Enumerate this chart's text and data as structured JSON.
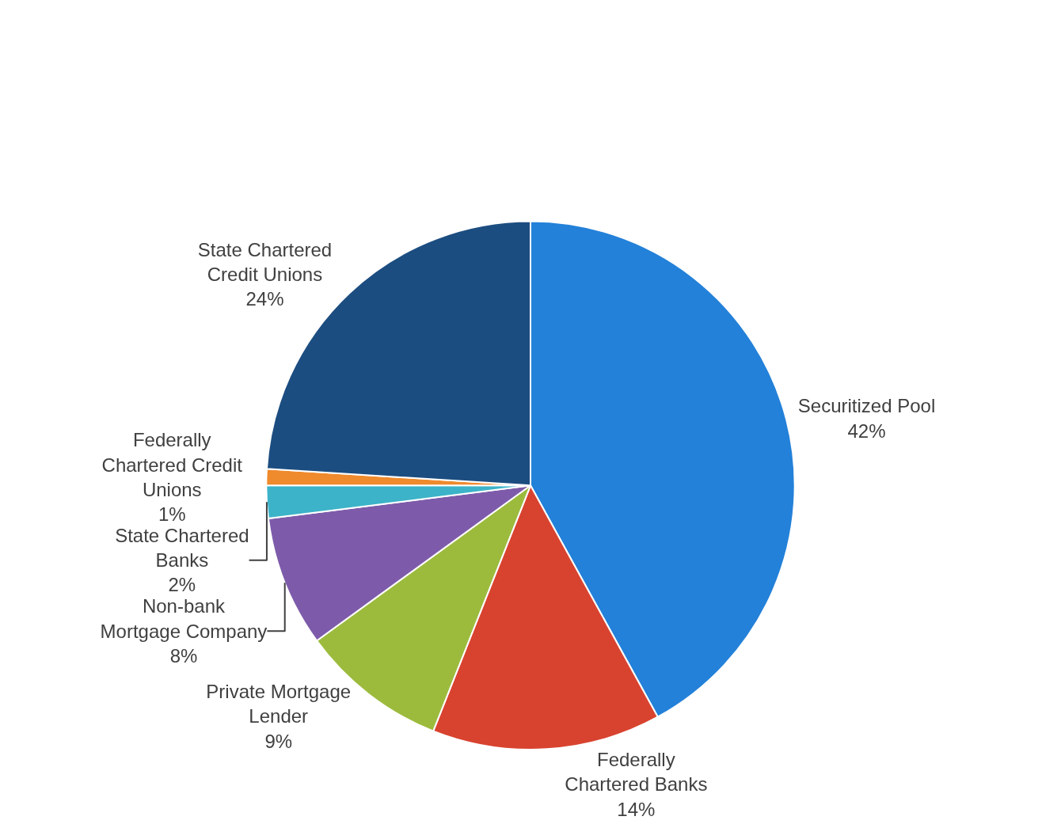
{
  "chart_data": {
    "type": "pie",
    "categories": [
      "Securitized Pool",
      "Federally Chartered Banks",
      "Private Mortgage Lender",
      "Non-bank Mortgage Company",
      "State Chartered Banks",
      "Federally Chartered Credit Unions",
      "State Chartered Credit Unions"
    ],
    "values": [
      42,
      14,
      9,
      8,
      2,
      1,
      24
    ],
    "value_labels": [
      "42%",
      "14%",
      "9%",
      "8%",
      "2%",
      "1%",
      "24%"
    ],
    "colors": [
      "#2381d9",
      "#d8432f",
      "#9cbb3d",
      "#7d5baa",
      "#3cb3c8",
      "#ef8a2d",
      "#1c4d80"
    ],
    "legend": false
  }
}
